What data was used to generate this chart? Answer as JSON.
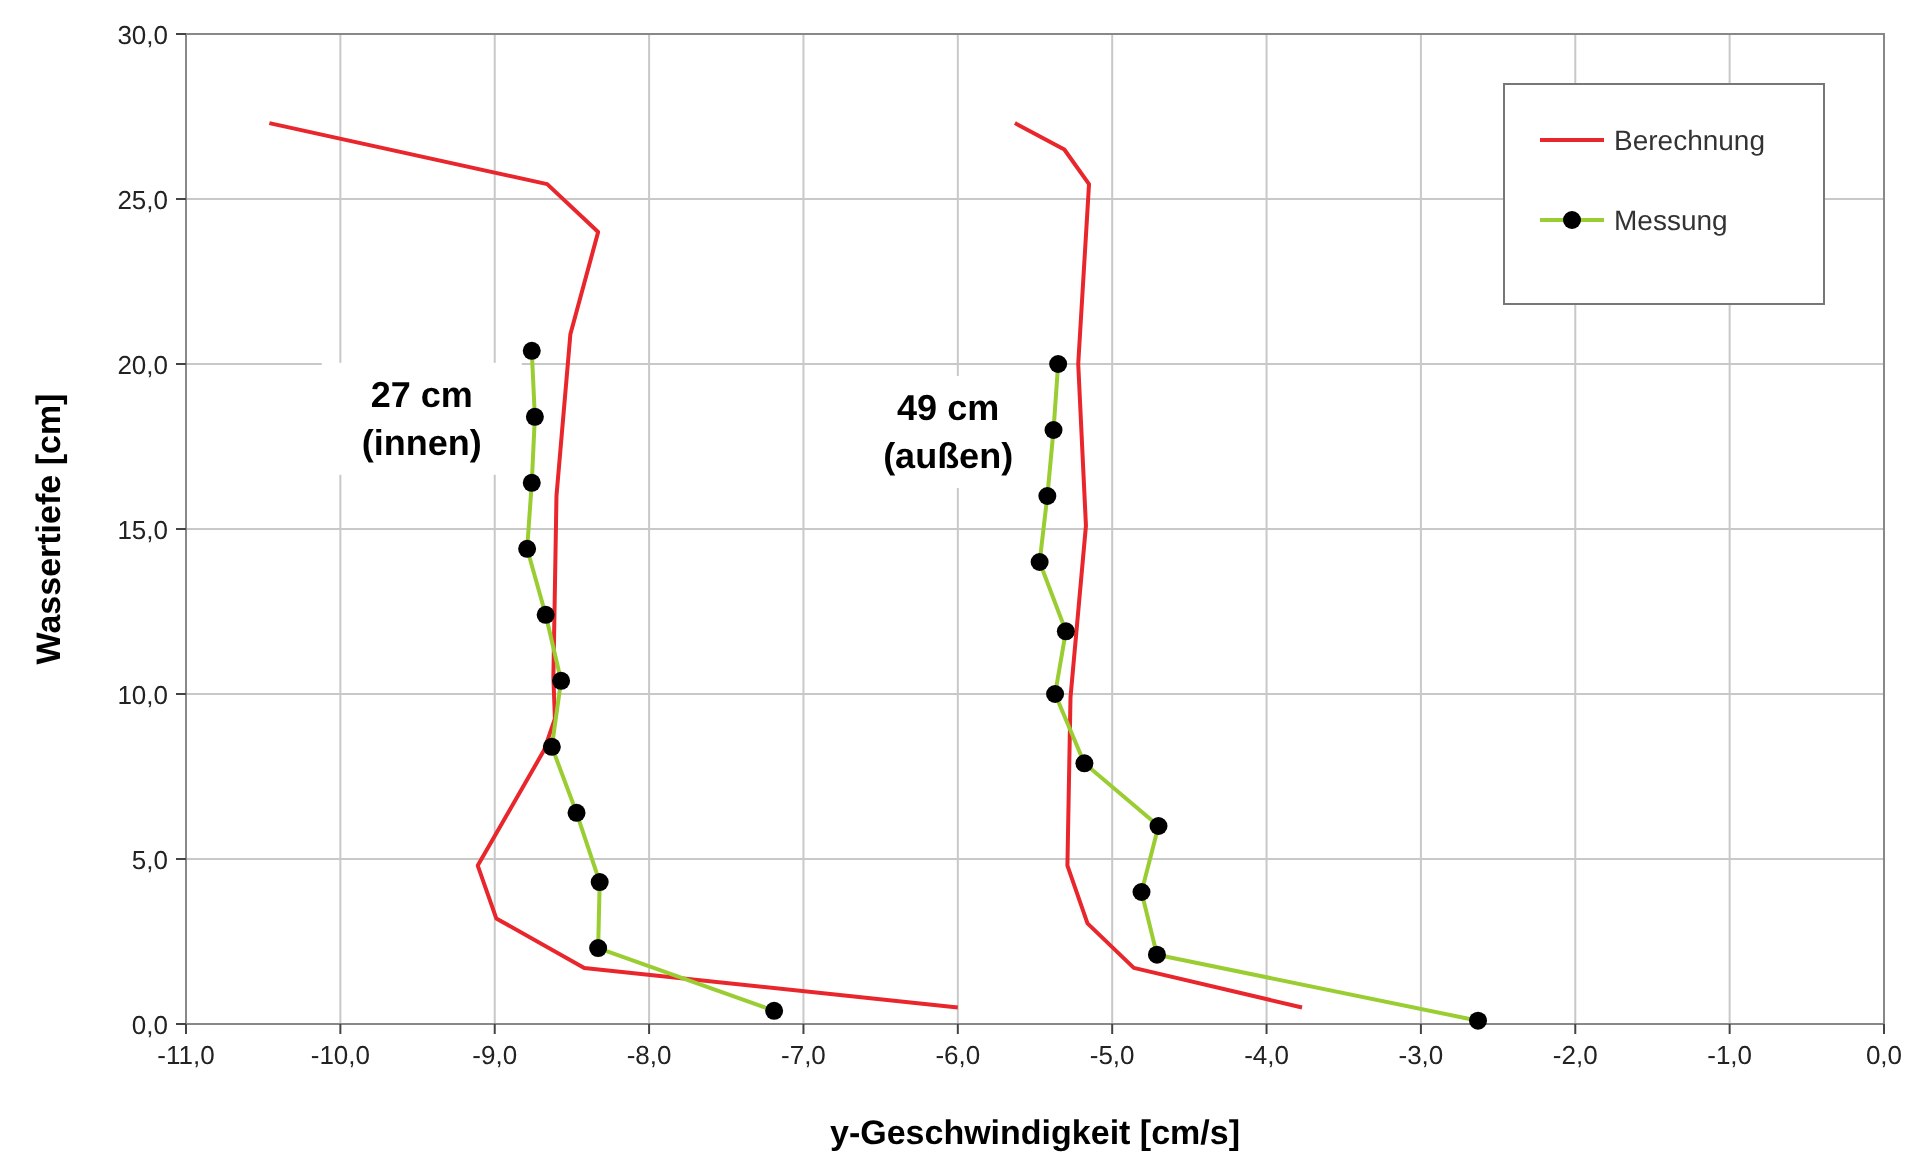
{
  "chart_data": {
    "type": "line",
    "xlabel": "y-Geschwindigkeit [cm/s]",
    "ylabel": "Wassertiefe [cm]",
    "xlim": [
      -11,
      0
    ],
    "ylim": [
      0,
      30
    ],
    "xticks": [
      {
        "value": -11,
        "label": "-11,0"
      },
      {
        "value": -10,
        "label": "-10,0"
      },
      {
        "value": -9,
        "label": "-9,0"
      },
      {
        "value": -8,
        "label": "-8,0"
      },
      {
        "value": -7,
        "label": "-7,0"
      },
      {
        "value": -6,
        "label": "-6,0"
      },
      {
        "value": -5,
        "label": "-5,0"
      },
      {
        "value": -4,
        "label": "-4,0"
      },
      {
        "value": -3,
        "label": "-3,0"
      },
      {
        "value": -2,
        "label": "-2,0"
      },
      {
        "value": -1,
        "label": "-1,0"
      },
      {
        "value": 0,
        "label": "0,0"
      }
    ],
    "yticks": [
      {
        "value": 0,
        "label": "0,0"
      },
      {
        "value": 5,
        "label": "5,0"
      },
      {
        "value": 10,
        "label": "10,0"
      },
      {
        "value": 15,
        "label": "15,0"
      },
      {
        "value": 20,
        "label": "20,0"
      },
      {
        "value": 25,
        "label": "25,0"
      },
      {
        "value": 30,
        "label": "30,0"
      }
    ],
    "grid": true,
    "legend": "top right",
    "series": [
      {
        "name": "Berechnung",
        "color": "#e8262b",
        "marker": "none",
        "x": [
          -10.46,
          -8.66,
          -8.33,
          -8.51,
          -8.6,
          -8.62,
          -8.61,
          -8.68,
          -9.11,
          -8.99,
          -8.42,
          -6.0
        ],
        "values": [
          27.3,
          25.45,
          24.0,
          20.9,
          16.0,
          10.5,
          9.25,
          8.3,
          4.8,
          3.2,
          1.7,
          0.5
        ]
      },
      {
        "name": "Messung",
        "color": "#9acd32",
        "marker": "circle",
        "x": [
          -8.76,
          -8.74,
          -8.76,
          -8.79,
          -8.67,
          -8.57,
          -8.63,
          -8.47,
          -8.32,
          -8.33,
          -7.19
        ],
        "values": [
          20.4,
          18.4,
          16.4,
          14.4,
          12.4,
          10.4,
          8.4,
          6.4,
          4.3,
          2.3,
          0.4
        ]
      },
      {
        "color": "#e8262b",
        "marker": "none",
        "x": [
          -5.63,
          -5.31,
          -5.15,
          -5.22,
          -5.17,
          -5.27,
          -5.29,
          -5.16,
          -4.86,
          -3.77
        ],
        "values": [
          27.3,
          26.5,
          25.45,
          20.0,
          15.1,
          9.9,
          4.8,
          3.05,
          1.7,
          0.5
        ]
      },
      {
        "color": "#9acd32",
        "marker": "circle",
        "x": [
          -5.35,
          -5.38,
          -5.42,
          -5.47,
          -5.3,
          -5.37,
          -5.18,
          -4.7,
          -4.81,
          -4.71,
          -2.63
        ],
        "values": [
          20.0,
          18.0,
          16.0,
          14.0,
          11.9,
          10.0,
          7.9,
          6.0,
          4.0,
          2.1,
          0.1
        ]
      }
    ],
    "annotations": [
      "27 cm\n(innen)",
      "49 cm\n(außen)"
    ]
  }
}
